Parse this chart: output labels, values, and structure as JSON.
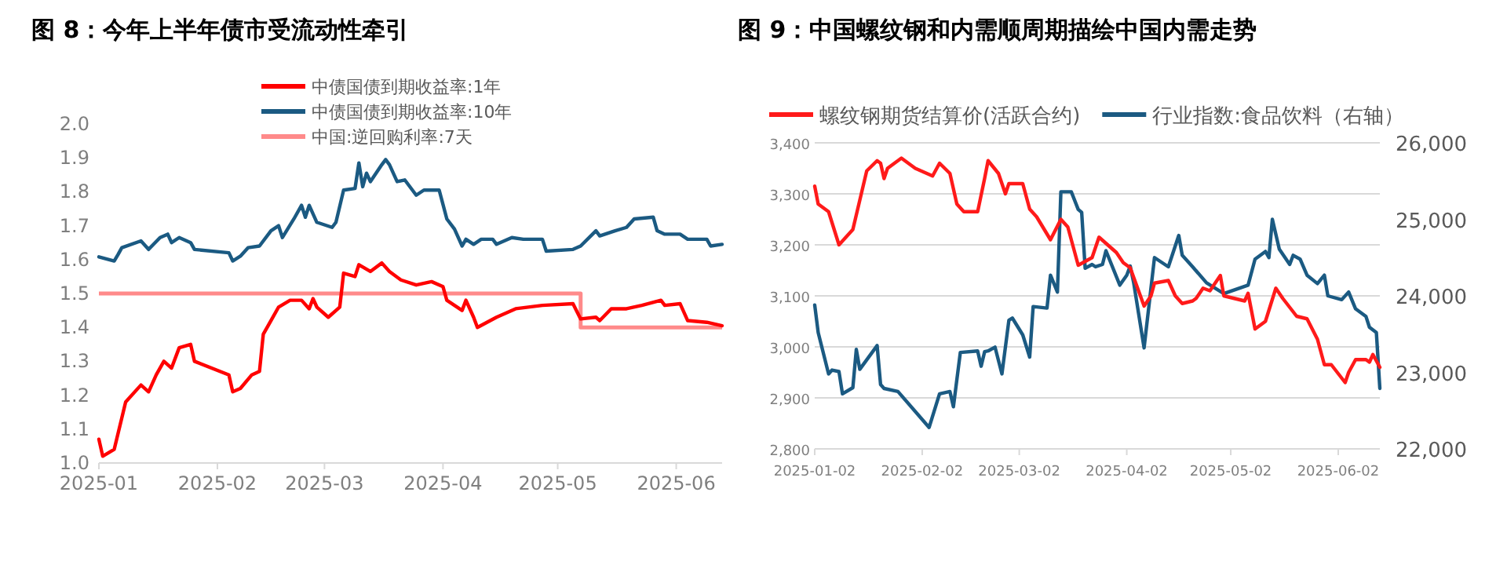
{
  "chart_data": [
    {
      "type": "line",
      "title": "图 8：今年上半年债市受流动性牵引",
      "xlim": [
        "2025-01-01",
        "2025-06-13"
      ],
      "xticks": [
        "2025-01",
        "2025-02",
        "2025-03",
        "2025-04",
        "2025-05",
        "2025-06"
      ],
      "ylim": [
        1.0,
        2.0
      ],
      "yticks": [
        {
          "value": 1.0,
          "label": "1.0"
        },
        {
          "value": 1.1,
          "label": "1.1"
        },
        {
          "value": 1.2,
          "label": "1.2"
        },
        {
          "value": 1.3,
          "label": "1.3"
        },
        {
          "value": 1.4,
          "label": "1.4"
        },
        {
          "value": 1.5,
          "label": "1.5"
        },
        {
          "value": 1.6,
          "label": "1.6"
        },
        {
          "value": 1.7,
          "label": "1.7"
        },
        {
          "value": 1.8,
          "label": "1.8"
        },
        {
          "value": 1.9,
          "label": "1.9"
        },
        {
          "value": 2.0,
          "label": "2.0"
        }
      ],
      "grid": false,
      "legend": "top",
      "series": [
        {
          "name": "中债国债到期收益率:1年",
          "color": "#ff0000",
          "x": [
            "2025-01-01",
            "2025-01-02",
            "2025-01-05",
            "2025-01-08",
            "2025-01-12",
            "2025-01-14",
            "2025-01-16",
            "2025-01-18",
            "2025-01-20",
            "2025-01-22",
            "2025-01-25",
            "2025-01-26",
            "2025-02-04",
            "2025-02-05",
            "2025-02-07",
            "2025-02-10",
            "2025-02-12",
            "2025-02-13",
            "2025-02-15",
            "2025-02-17",
            "2025-02-20",
            "2025-02-23",
            "2025-02-25",
            "2025-02-26",
            "2025-02-27",
            "2025-03-02",
            "2025-03-05",
            "2025-03-06",
            "2025-03-09",
            "2025-03-10",
            "2025-03-13",
            "2025-03-16",
            "2025-03-18",
            "2025-03-21",
            "2025-03-25",
            "2025-03-29",
            "2025-04-01",
            "2025-04-02",
            "2025-04-06",
            "2025-04-07",
            "2025-04-09",
            "2025-04-10",
            "2025-04-15",
            "2025-04-20",
            "2025-04-27",
            "2025-05-05",
            "2025-05-07",
            "2025-05-11",
            "2025-05-12",
            "2025-05-15",
            "2025-05-19",
            "2025-05-23",
            "2025-05-28",
            "2025-05-29",
            "2025-06-02",
            "2025-06-04",
            "2025-06-09",
            "2025-06-13"
          ],
          "values": [
            1.07,
            1.02,
            1.04,
            1.18,
            1.23,
            1.21,
            1.26,
            1.3,
            1.28,
            1.34,
            1.35,
            1.3,
            1.26,
            1.21,
            1.22,
            1.26,
            1.27,
            1.38,
            1.42,
            1.46,
            1.48,
            1.48,
            1.455,
            1.485,
            1.46,
            1.43,
            1.46,
            1.56,
            1.55,
            1.585,
            1.565,
            1.59,
            1.565,
            1.54,
            1.525,
            1.535,
            1.52,
            1.48,
            1.45,
            1.48,
            1.43,
            1.4,
            1.43,
            1.455,
            1.465,
            1.47,
            1.425,
            1.43,
            1.42,
            1.455,
            1.455,
            1.465,
            1.48,
            1.465,
            1.47,
            1.42,
            1.415,
            1.405
          ]
        },
        {
          "name": "中债国债到期收益率:10年",
          "color": "#1b5a82",
          "x": [
            "2025-01-01",
            "2025-01-05",
            "2025-01-06",
            "2025-01-07",
            "2025-01-12",
            "2025-01-14",
            "2025-01-17",
            "2025-01-19",
            "2025-01-20",
            "2025-01-22",
            "2025-01-25",
            "2025-01-26",
            "2025-02-04",
            "2025-02-05",
            "2025-02-07",
            "2025-02-09",
            "2025-02-12",
            "2025-02-15",
            "2025-02-17",
            "2025-02-18",
            "2025-02-21",
            "2025-02-23",
            "2025-02-24",
            "2025-02-25",
            "2025-02-27",
            "2025-03-03",
            "2025-03-04",
            "2025-03-06",
            "2025-03-09",
            "2025-03-10",
            "2025-03-11",
            "2025-03-12",
            "2025-03-13",
            "2025-03-16",
            "2025-03-17",
            "2025-03-18",
            "2025-03-20",
            "2025-03-22",
            "2025-03-25",
            "2025-03-27",
            "2025-03-31",
            "2025-04-02",
            "2025-04-04",
            "2025-04-06",
            "2025-04-07",
            "2025-04-09",
            "2025-04-11",
            "2025-04-14",
            "2025-04-15",
            "2025-04-19",
            "2025-04-22",
            "2025-04-27",
            "2025-04-28",
            "2025-05-05",
            "2025-05-07",
            "2025-05-11",
            "2025-05-12",
            "2025-05-16",
            "2025-05-19",
            "2025-05-21",
            "2025-05-26",
            "2025-05-27",
            "2025-05-29",
            "2025-06-02",
            "2025-06-04",
            "2025-06-09",
            "2025-06-10",
            "2025-06-13"
          ],
          "values": [
            1.608,
            1.596,
            1.615,
            1.635,
            1.655,
            1.63,
            1.665,
            1.675,
            1.65,
            1.665,
            1.65,
            1.63,
            1.62,
            1.596,
            1.61,
            1.635,
            1.64,
            1.685,
            1.7,
            1.665,
            1.72,
            1.76,
            1.725,
            1.76,
            1.71,
            1.695,
            1.71,
            1.805,
            1.81,
            1.885,
            1.815,
            1.855,
            1.83,
            1.88,
            1.895,
            1.88,
            1.83,
            1.835,
            1.79,
            1.805,
            1.805,
            1.72,
            1.69,
            1.64,
            1.66,
            1.645,
            1.66,
            1.66,
            1.645,
            1.665,
            1.66,
            1.66,
            1.625,
            1.63,
            1.64,
            1.685,
            1.67,
            1.685,
            1.695,
            1.72,
            1.725,
            1.685,
            1.675,
            1.675,
            1.66,
            1.66,
            1.64,
            1.645
          ]
        },
        {
          "name": "中国:逆回购利率:7天",
          "color": "#ff8a8a",
          "type": "step",
          "x": [
            "2025-01-01",
            "2025-05-07",
            "2025-06-13"
          ],
          "values": [
            1.5,
            1.4,
            1.4
          ]
        }
      ]
    },
    {
      "type": "line",
      "title": "图 9：中国螺纹钢和内需顺周期描绘中国内需走势",
      "xlim": [
        "2025-01-02",
        "2025-06-14"
      ],
      "xticks": [
        "2025-01-02",
        "2025-02-02",
        "2025-03-02",
        "2025-04-02",
        "2025-05-02",
        "2025-06-02"
      ],
      "ylim": [
        2800,
        3400
      ],
      "yticks": [
        {
          "value": 2800,
          "label": "2,800"
        },
        {
          "value": 2900,
          "label": "2,900"
        },
        {
          "value": 3000,
          "label": "3,000"
        },
        {
          "value": 3100,
          "label": "3,100"
        },
        {
          "value": 3200,
          "label": "3,200"
        },
        {
          "value": 3300,
          "label": "3,300"
        },
        {
          "value": 3400,
          "label": "3,400"
        }
      ],
      "y2lim": [
        22000,
        26000
      ],
      "y2ticks": [
        {
          "value": 22000,
          "label": "22,000"
        },
        {
          "value": 23000,
          "label": "23,000"
        },
        {
          "value": 24000,
          "label": "24,000"
        },
        {
          "value": 25000,
          "label": "25,000"
        },
        {
          "value": 26000,
          "label": "26,000"
        }
      ],
      "grid": "y",
      "legend": "top",
      "series": [
        {
          "name": "螺纹钢期货结算价(活跃合约)",
          "color": "#ff1a1a",
          "x": [
            "2025-01-02",
            "2025-01-03",
            "2025-01-06",
            "2025-01-09",
            "2025-01-13",
            "2025-01-17",
            "2025-01-20",
            "2025-01-21",
            "2025-01-22",
            "2025-01-23",
            "2025-01-27",
            "2025-01-31",
            "2025-02-05",
            "2025-02-07",
            "2025-02-10",
            "2025-02-12",
            "2025-02-14",
            "2025-02-18",
            "2025-02-20",
            "2025-02-21",
            "2025-02-24",
            "2025-02-26",
            "2025-02-27",
            "2025-02-28",
            "2025-03-03",
            "2025-03-05",
            "2025-03-07",
            "2025-03-11",
            "2025-03-14",
            "2025-03-16",
            "2025-03-19",
            "2025-03-23",
            "2025-03-25",
            "2025-03-30",
            "2025-04-01",
            "2025-04-03",
            "2025-04-07",
            "2025-04-09",
            "2025-04-10",
            "2025-04-14",
            "2025-04-16",
            "2025-04-18",
            "2025-04-21",
            "2025-04-22",
            "2025-04-24",
            "2025-04-26",
            "2025-04-29",
            "2025-04-30",
            "2025-05-06",
            "2025-05-07",
            "2025-05-09",
            "2025-05-12",
            "2025-05-15",
            "2025-05-17",
            "2025-05-21",
            "2025-05-24",
            "2025-05-27",
            "2025-05-29",
            "2025-05-31",
            "2025-06-04",
            "2025-06-05",
            "2025-06-07",
            "2025-06-10",
            "2025-06-11",
            "2025-06-12",
            "2025-06-14"
          ],
          "values": [
            3315,
            3280,
            3265,
            3200,
            3230,
            3345,
            3365,
            3360,
            3330,
            3350,
            3370,
            3350,
            3335,
            3360,
            3340,
            3280,
            3265,
            3265,
            3330,
            3365,
            3340,
            3300,
            3320,
            3320,
            3320,
            3270,
            3255,
            3210,
            3250,
            3235,
            3160,
            3175,
            3215,
            3185,
            3165,
            3155,
            3080,
            3100,
            3125,
            3130,
            3100,
            3085,
            3090,
            3095,
            3115,
            3110,
            3140,
            3100,
            3090,
            3105,
            3035,
            3050,
            3115,
            3095,
            3060,
            3055,
            3015,
            2965,
            2965,
            2930,
            2950,
            2975,
            2975,
            2970,
            2985,
            2960
          ]
        },
        {
          "name": "行业指数:食品饮料（右轴）",
          "color": "#1b5a82",
          "axis": "y2",
          "x": [
            "2025-01-02",
            "2025-01-03",
            "2025-01-06",
            "2025-01-07",
            "2025-01-09",
            "2025-01-10",
            "2025-01-13",
            "2025-01-14",
            "2025-01-15",
            "2025-01-20",
            "2025-01-21",
            "2025-01-22",
            "2025-01-26",
            "2025-02-04",
            "2025-02-07",
            "2025-02-10",
            "2025-02-11",
            "2025-02-13",
            "2025-02-18",
            "2025-02-19",
            "2025-02-20",
            "2025-02-21",
            "2025-02-23",
            "2025-02-25",
            "2025-02-27",
            "2025-02-28",
            "2025-03-03",
            "2025-03-05",
            "2025-03-06",
            "2025-03-10",
            "2025-03-11",
            "2025-03-13",
            "2025-03-14",
            "2025-03-17",
            "2025-03-19",
            "2025-03-20",
            "2025-03-21",
            "2025-03-23",
            "2025-03-24",
            "2025-03-26",
            "2025-03-27",
            "2025-03-31",
            "2025-04-02",
            "2025-04-03",
            "2025-04-04",
            "2025-04-07",
            "2025-04-10",
            "2025-04-14",
            "2025-04-17",
            "2025-04-18",
            "2025-04-21",
            "2025-04-25",
            "2025-04-30",
            "2025-05-07",
            "2025-05-09",
            "2025-05-12",
            "2025-05-13",
            "2025-05-14",
            "2025-05-16",
            "2025-05-19",
            "2025-05-20",
            "2025-05-22",
            "2025-05-24",
            "2025-05-27",
            "2025-05-29",
            "2025-05-30",
            "2025-06-03",
            "2025-06-05",
            "2025-06-07",
            "2025-06-10",
            "2025-06-11",
            "2025-06-13",
            "2025-06-14"
          ],
          "values": [
            23880,
            23520,
            22980,
            23030,
            23010,
            22720,
            22800,
            23300,
            23040,
            23350,
            22840,
            22790,
            22750,
            22280,
            22720,
            22750,
            22550,
            23260,
            23280,
            23080,
            23270,
            23280,
            23330,
            22980,
            23680,
            23710,
            23490,
            23200,
            23860,
            23840,
            24270,
            24050,
            25360,
            25360,
            25130,
            25090,
            24360,
            24410,
            24380,
            24410,
            24590,
            24140,
            24270,
            24390,
            24170,
            23320,
            24500,
            24380,
            24790,
            24530,
            24380,
            24170,
            24030,
            24140,
            24480,
            24580,
            24500,
            25000,
            24610,
            24410,
            24530,
            24480,
            24270,
            24160,
            24270,
            24000,
            23950,
            24050,
            23830,
            23730,
            23590,
            23520,
            22790
          ]
        }
      ]
    }
  ]
}
